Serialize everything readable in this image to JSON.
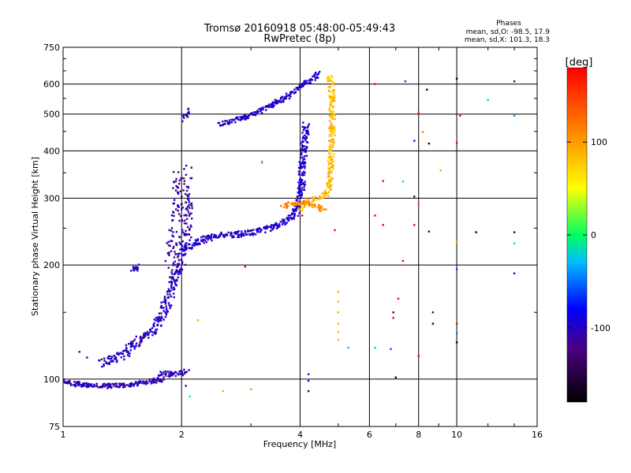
{
  "chart_data": {
    "type": "scatter",
    "title_line1": "Tromsø 20160918 05:48:00-05:49:43",
    "title_line2": "RwPretec (8p)",
    "xlabel": "Frequency [MHz]",
    "ylabel": "Stationary phase Virtual Height [km]",
    "x_scale": "log",
    "y_scale": "log",
    "xlim": [
      1,
      16
    ],
    "ylim": [
      75,
      750
    ],
    "x_ticks": [
      "1",
      "2",
      "4",
      "6",
      "8",
      "10",
      "16"
    ],
    "y_ticks": [
      "75",
      "100",
      "200",
      "300",
      "400",
      "500",
      "600",
      "750"
    ],
    "grid": true,
    "phase_box": {
      "title": "Phases",
      "line_o": "mean, sd,O: -98.5, 17.9",
      "line_x": "mean, sd,X: 101.3, 18.3"
    },
    "colorbar": {
      "label": "[deg]",
      "range": [
        -180,
        180
      ],
      "ticks": [
        "100",
        "0",
        "-100"
      ],
      "tick_values": [
        100,
        0,
        -100
      ]
    },
    "series": [
      {
        "name": "O",
        "mean_phase": -98.5,
        "traces": [
          {
            "phase": -110,
            "spread": 0.012,
            "points": [
              [
                1.0,
                100
              ],
              [
                1.05,
                97
              ],
              [
                1.1,
                97
              ],
              [
                1.2,
                96
              ],
              [
                1.3,
                96
              ],
              [
                1.4,
                96
              ],
              [
                1.5,
                97
              ],
              [
                1.6,
                98
              ],
              [
                1.7,
                99
              ],
              [
                1.8,
                100
              ]
            ]
          },
          {
            "phase": -108,
            "spread": 0.015,
            "points": [
              [
                1.75,
                101
              ],
              [
                1.8,
                103
              ],
              [
                1.9,
                103
              ],
              [
                2.0,
                104
              ],
              [
                2.05,
                106
              ]
            ]
          },
          {
            "phase": -105,
            "spread": 0.02,
            "points": [
              [
                1.25,
                110
              ],
              [
                1.4,
                115
              ],
              [
                1.55,
                125
              ],
              [
                1.7,
                135
              ],
              [
                1.8,
                150
              ],
              [
                1.88,
                170
              ],
              [
                1.93,
                190
              ],
              [
                1.98,
                205
              ]
            ]
          },
          {
            "phase": -115,
            "spread": 0.045,
            "points": [
              [
                1.9,
                200
              ],
              [
                1.95,
                220
              ],
              [
                2.0,
                250
              ],
              [
                2.0,
                280
              ],
              [
                2.0,
                320
              ],
              [
                2.02,
                350
              ]
            ]
          },
          {
            "phase": -100,
            "spread": 0.015,
            "points": [
              [
                2.0,
                215
              ],
              [
                2.1,
                225
              ],
              [
                2.3,
                235
              ],
              [
                2.5,
                240
              ],
              [
                2.7,
                240
              ],
              [
                2.9,
                242
              ],
              [
                3.1,
                245
              ],
              [
                3.3,
                250
              ],
              [
                3.5,
                255
              ],
              [
                3.7,
                262
              ],
              [
                3.85,
                270
              ],
              [
                3.95,
                285
              ],
              [
                4.02,
                310
              ],
              [
                4.05,
                350
              ],
              [
                4.1,
                420
              ],
              [
                4.15,
                470
              ]
            ]
          },
          {
            "phase": -100,
            "spread": 0.012,
            "points": [
              [
                2.5,
                470
              ],
              [
                2.7,
                480
              ],
              [
                2.9,
                490
              ],
              [
                3.1,
                505
              ],
              [
                3.3,
                520
              ],
              [
                3.5,
                540
              ],
              [
                3.7,
                555
              ],
              [
                3.9,
                580
              ],
              [
                4.1,
                600
              ],
              [
                4.3,
                620
              ],
              [
                4.45,
                640
              ]
            ]
          },
          {
            "phase": -108,
            "spread": 0.015,
            "points": [
              [
                2.05,
                485
              ],
              [
                2.06,
                510
              ]
            ]
          },
          {
            "phase": -105,
            "spread": 0.012,
            "points": [
              [
                1.5,
                190
              ],
              [
                1.55,
                200
              ]
            ]
          }
        ]
      },
      {
        "name": "X",
        "mean_phase": 101.3,
        "traces": [
          {
            "phase": 85,
            "spread": 0.012,
            "points": [
              [
                4.0,
                280
              ],
              [
                4.1,
                288
              ],
              [
                4.2,
                295
              ],
              [
                4.35,
                298
              ],
              [
                4.5,
                300
              ],
              [
                4.6,
                305
              ],
              [
                4.7,
                310
              ],
              [
                4.75,
                330
              ],
              [
                4.78,
                360
              ],
              [
                4.8,
                400
              ],
              [
                4.82,
                450
              ],
              [
                4.83,
                500
              ],
              [
                4.82,
                550
              ],
              [
                4.8,
                600
              ],
              [
                4.75,
                630
              ]
            ]
          },
          {
            "phase": 110,
            "spread": 0.012,
            "points": [
              [
                3.6,
                285
              ],
              [
                3.8,
                290
              ],
              [
                4.0,
                292
              ],
              [
                4.2,
                290
              ],
              [
                4.4,
                285
              ],
              [
                4.6,
                280
              ]
            ]
          }
        ]
      }
    ],
    "scatter_points": [
      [
        6.2,
        600,
        200
      ],
      [
        7.4,
        610,
        -60
      ],
      [
        8.4,
        580,
        -170
      ],
      [
        10.0,
        620,
        -170
      ],
      [
        14.0,
        610,
        -130
      ],
      [
        8.0,
        505,
        150
      ],
      [
        10.2,
        495,
        180
      ],
      [
        14.0,
        495,
        -40
      ],
      [
        12.0,
        545,
        -20
      ],
      [
        8.2,
        448,
        120
      ],
      [
        8.5,
        418,
        -170
      ],
      [
        7.8,
        425,
        -100
      ],
      [
        10.0,
        420,
        190
      ],
      [
        9.1,
        355,
        100
      ],
      [
        6.5,
        333,
        180
      ],
      [
        7.3,
        332,
        -10
      ],
      [
        7.8,
        303,
        -140
      ],
      [
        8.0,
        290,
        140
      ],
      [
        6.2,
        270,
        180
      ],
      [
        6.5,
        255,
        220
      ],
      [
        7.8,
        255,
        220
      ],
      [
        8.5,
        245,
        -150
      ],
      [
        11.2,
        244,
        -170
      ],
      [
        14.0,
        244,
        -150
      ],
      [
        14.0,
        228,
        -20
      ],
      [
        7.3,
        205,
        180
      ],
      [
        10.0,
        230,
        100
      ],
      [
        10.0,
        195,
        -60
      ],
      [
        14.0,
        190,
        -100
      ],
      [
        5.0,
        170,
        90
      ],
      [
        5.0,
        160,
        90
      ],
      [
        5.0,
        150,
        90
      ],
      [
        5.0,
        140,
        90
      ],
      [
        5.0,
        133,
        90
      ],
      [
        5.0,
        127,
        90
      ],
      [
        7.1,
        163,
        210
      ],
      [
        6.9,
        150,
        -140
      ],
      [
        6.9,
        145,
        180
      ],
      [
        8.7,
        150,
        -130
      ],
      [
        8.7,
        140,
        -170
      ],
      [
        6.2,
        121,
        -20
      ],
      [
        6.8,
        120,
        -60
      ],
      [
        8.0,
        115,
        180
      ],
      [
        10.0,
        140,
        200
      ],
      [
        10.0,
        132,
        -50
      ],
      [
        10.0,
        125,
        -170
      ],
      [
        7.0,
        101,
        -170
      ],
      [
        4.2,
        103,
        -130
      ],
      [
        4.2,
        99,
        -100
      ],
      [
        4.2,
        93,
        -140
      ],
      [
        2.2,
        143,
        95
      ],
      [
        2.05,
        96,
        -110
      ],
      [
        2.55,
        93,
        100
      ],
      [
        3.0,
        94,
        110
      ],
      [
        2.1,
        90,
        -10
      ],
      [
        3.2,
        375,
        100
      ],
      [
        3.2,
        372,
        -30
      ],
      [
        1.1,
        118,
        -100
      ],
      [
        1.15,
        114,
        -110
      ],
      [
        2.9,
        198,
        180
      ],
      [
        4.05,
        270,
        180
      ],
      [
        4.9,
        247,
        200
      ],
      [
        5.3,
        121,
        -30
      ]
    ]
  }
}
